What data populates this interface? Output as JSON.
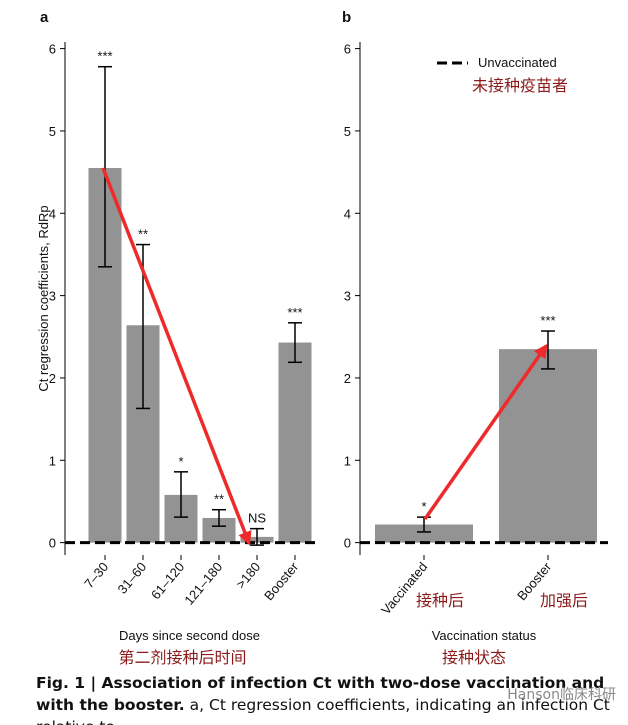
{
  "chart_data": [
    {
      "type": "bar",
      "panel_label": "a",
      "ylabel": "Ct regression coefficients, RdRp",
      "categories": [
        "7–30",
        "31–60",
        "61–120",
        "121–180",
        ">180",
        "Booster"
      ],
      "values": [
        4.55,
        2.64,
        0.58,
        0.3,
        0.07,
        2.43
      ],
      "ci_low": [
        3.35,
        1.63,
        0.31,
        0.2,
        -0.03,
        2.19
      ],
      "ci_high": [
        5.78,
        3.62,
        0.86,
        0.4,
        0.17,
        2.67
      ],
      "annotations": [
        "***",
        "**",
        "*",
        "**",
        "NS",
        "***"
      ],
      "color": "#939393",
      "ylim": [
        -0.15,
        6.08
      ],
      "yticks": [
        0,
        1,
        2,
        3,
        4,
        5,
        6
      ],
      "reference_line": 0,
      "xlabel": "Days since second dose",
      "xlabel_cn": "第二剂接种后时间"
    },
    {
      "type": "bar",
      "panel_label": "b",
      "categories": [
        "Vaccinated",
        "Booster"
      ],
      "categories_cn": [
        "接种后",
        "加强后"
      ],
      "values": [
        0.22,
        2.35
      ],
      "ci_low": [
        0.13,
        2.11
      ],
      "ci_high": [
        0.31,
        2.57
      ],
      "annotations": [
        "*",
        "***"
      ],
      "color": "#939393",
      "ylim": [
        -0.15,
        6.08
      ],
      "yticks": [
        0,
        1,
        2,
        3,
        4,
        5,
        6
      ],
      "reference_line": 0,
      "legend": "Unvaccinated",
      "legend_cn": "未接种疫苗者",
      "xlabel": "Vaccination status",
      "xlabel_cn": "接种状态"
    }
  ],
  "caption_bold": "Fig. 1 | Association of infection Ct with two-dose vaccination and with the booster.",
  "caption_text": "a, Ct regression coefficients, indicating an infection Ct relative to",
  "watermark": "Hanson临床科研"
}
